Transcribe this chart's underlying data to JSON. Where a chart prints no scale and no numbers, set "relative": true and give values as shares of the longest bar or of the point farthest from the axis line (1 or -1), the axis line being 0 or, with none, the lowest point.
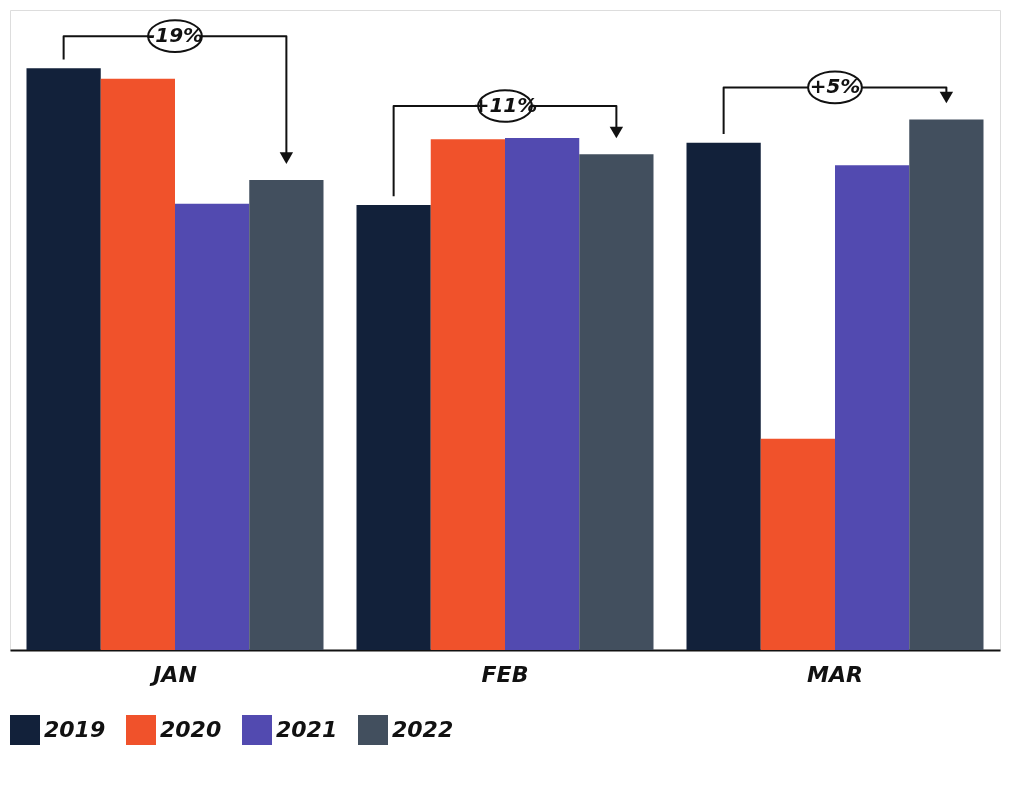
{
  "chart_data": {
    "type": "bar",
    "relative": true,
    "categories": [
      "JAN",
      "FEB",
      "MAR"
    ],
    "series": [
      {
        "name": "2019",
        "color": "#12213a",
        "values": [
          1.0,
          0.765,
          0.872
        ]
      },
      {
        "name": "2020",
        "color": "#f0522b",
        "values": [
          0.982,
          0.878,
          0.363
        ]
      },
      {
        "name": "2021",
        "color": "#524ab0",
        "values": [
          0.767,
          0.88,
          0.833
        ]
      },
      {
        "name": "2022",
        "color": "#424f5e",
        "values": [
          0.808,
          0.852,
          0.912
        ]
      }
    ],
    "annotations": [
      "-19%",
      "+11%",
      "+5%"
    ],
    "legend": "bottom",
    "grid": false
  }
}
